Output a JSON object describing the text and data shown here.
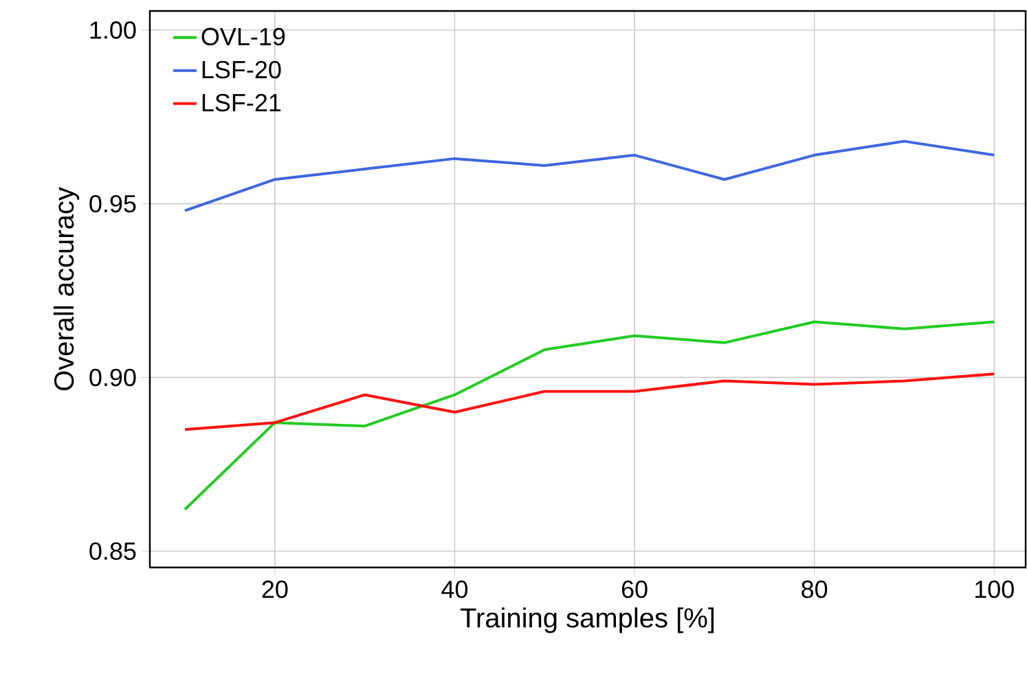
{
  "chart_data": {
    "type": "line",
    "xlabel": "Training samples [%]",
    "ylabel": "Overall accuracy",
    "x": [
      10,
      20,
      30,
      40,
      50,
      60,
      70,
      80,
      90,
      100
    ],
    "series": [
      {
        "name": "OVL-19",
        "color": "#22cc22",
        "values": [
          0.862,
          0.887,
          0.886,
          0.895,
          0.908,
          0.912,
          0.91,
          0.916,
          0.914,
          0.916
        ]
      },
      {
        "name": "LSF-20",
        "color": "#3f66e0",
        "values": [
          0.948,
          0.957,
          0.96,
          0.963,
          0.961,
          0.964,
          0.957,
          0.964,
          0.968,
          0.964
        ]
      },
      {
        "name": "LSF-21",
        "color": "#ff1111",
        "values": [
          0.885,
          0.887,
          0.895,
          0.89,
          0.896,
          0.896,
          0.899,
          0.898,
          0.899,
          0.901
        ]
      }
    ],
    "xlim": [
      6.1,
      103.5
    ],
    "ylim": [
      0.8453,
      1.0055
    ],
    "xticks": [
      20,
      40,
      60,
      80,
      100
    ],
    "yticks": [
      {
        "value": 0.85,
        "label": "0.85"
      },
      {
        "value": 0.9,
        "label": "0.90"
      },
      {
        "value": 0.95,
        "label": "0.95"
      },
      {
        "value": 1.0,
        "label": "1.00"
      }
    ],
    "grid": true,
    "legend": "top left",
    "marker": "none",
    "line_style": "solid"
  }
}
